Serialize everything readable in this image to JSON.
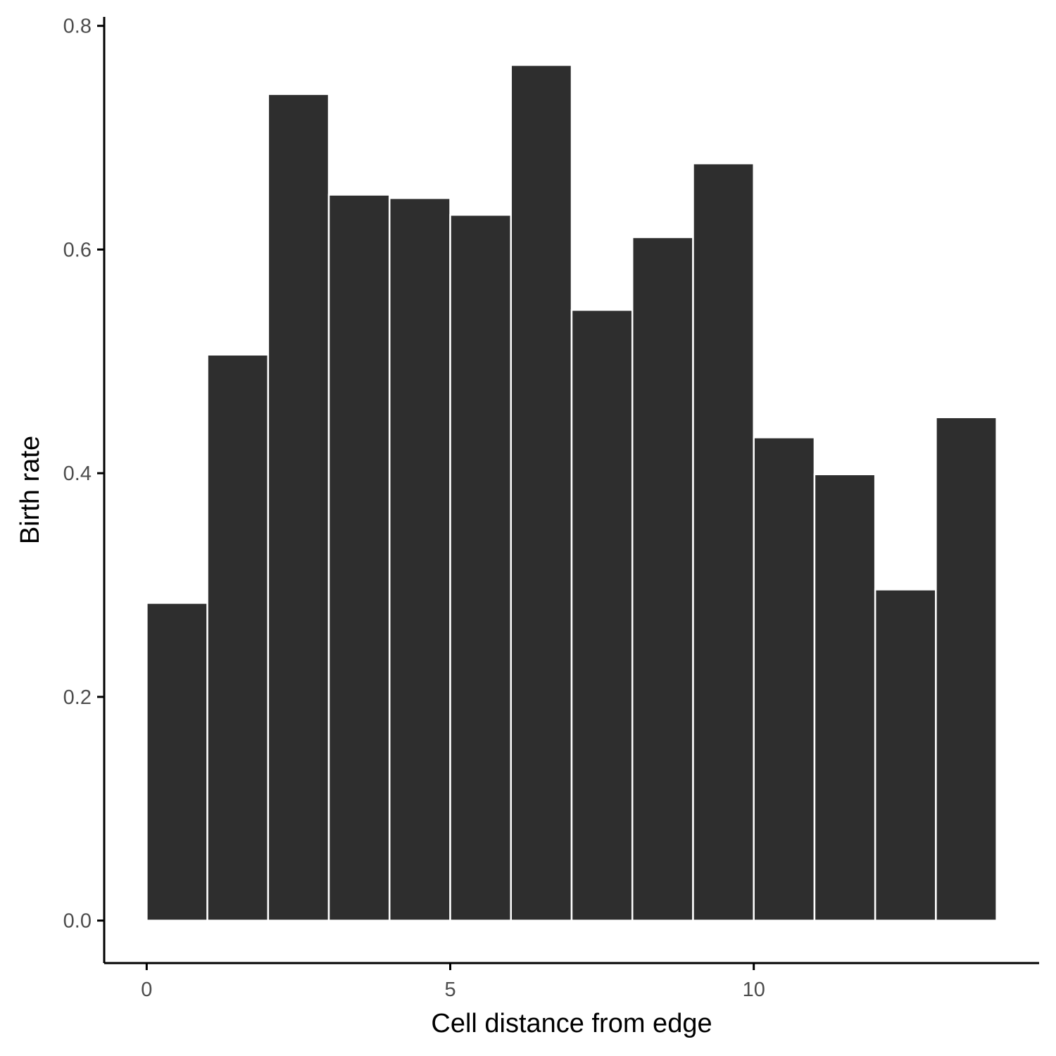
{
  "chart_data": {
    "type": "bar",
    "title": "",
    "xlabel": "Cell distance from edge",
    "ylabel": "Birth rate",
    "bin_width": 1,
    "bins": [
      {
        "start": 0,
        "end": 1,
        "value": 0.284
      },
      {
        "start": 1,
        "end": 2,
        "value": 0.506
      },
      {
        "start": 2,
        "end": 3,
        "value": 0.739
      },
      {
        "start": 3,
        "end": 4,
        "value": 0.649
      },
      {
        "start": 4,
        "end": 5,
        "value": 0.646
      },
      {
        "start": 5,
        "end": 6,
        "value": 0.631
      },
      {
        "start": 6,
        "end": 7,
        "value": 0.765
      },
      {
        "start": 7,
        "end": 8,
        "value": 0.546
      },
      {
        "start": 8,
        "end": 9,
        "value": 0.611
      },
      {
        "start": 9,
        "end": 10,
        "value": 0.677
      },
      {
        "start": 10,
        "end": 11,
        "value": 0.432
      },
      {
        "start": 11,
        "end": 12,
        "value": 0.399
      },
      {
        "start": 12,
        "end": 13,
        "value": 0.296
      },
      {
        "start": 13,
        "end": 14,
        "value": 0.45
      }
    ],
    "xlim": [
      -0.7,
      14.7
    ],
    "ylim": [
      -0.038,
      0.808
    ],
    "x_ticks": [
      0,
      5,
      10
    ],
    "x_tick_labels": [
      "0",
      "5",
      "10"
    ],
    "y_ticks": [
      0.0,
      0.2,
      0.4,
      0.6,
      0.8
    ],
    "y_tick_labels": [
      "0.0",
      "0.2",
      "0.4",
      "0.6",
      "0.8"
    ],
    "grid": false,
    "legend": "none",
    "colors": {
      "bar_fill": "#2e2e2e",
      "bar_outline": "#ffffff",
      "axis": "#000000",
      "tick_text": "#4d4d4d"
    }
  }
}
